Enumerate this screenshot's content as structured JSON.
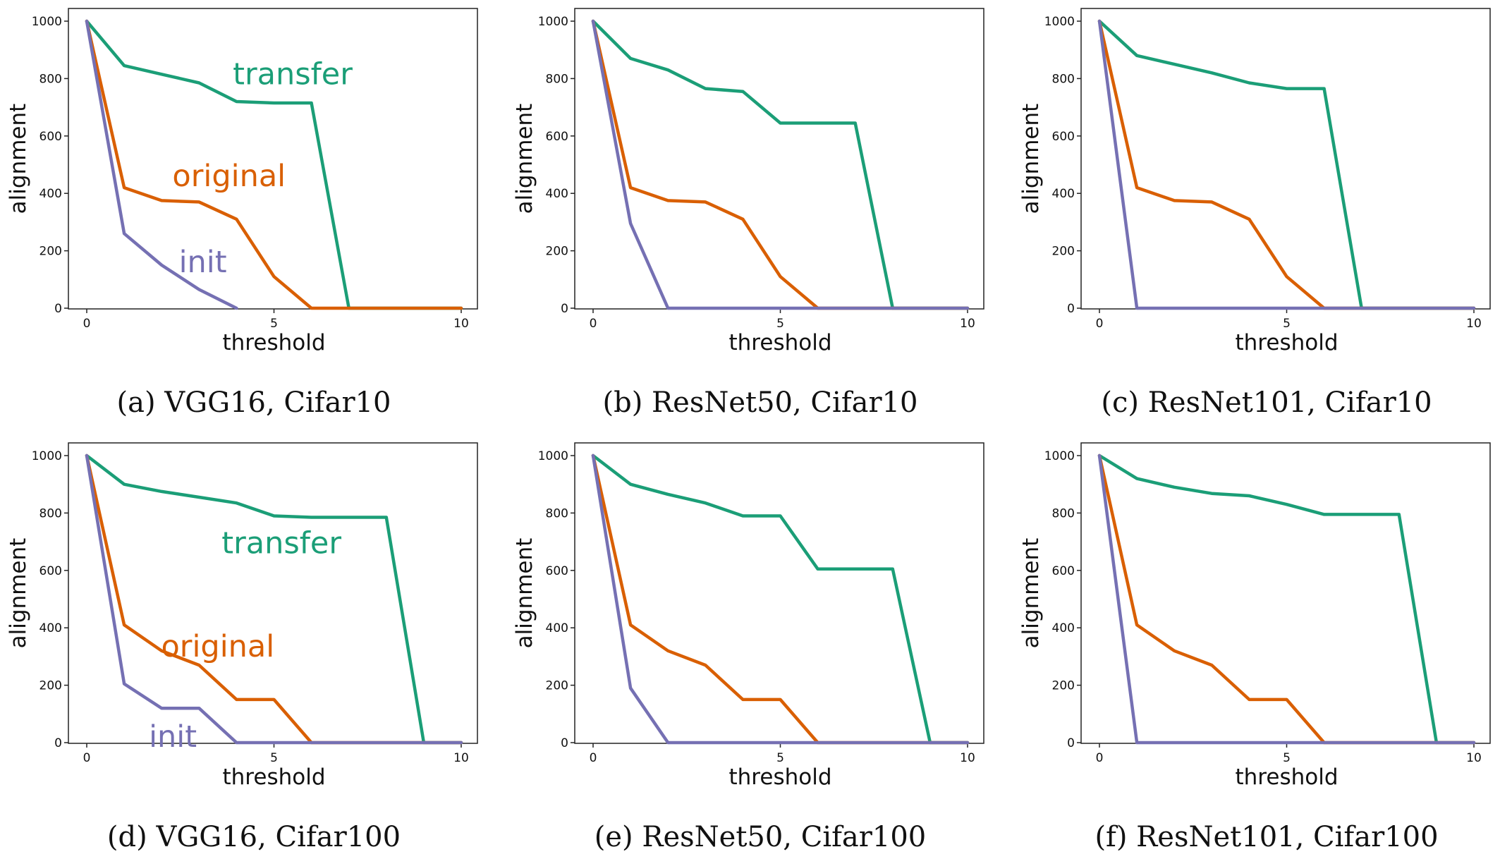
{
  "series_colors": {
    "transfer": "#1b9e77",
    "original": "#d95f02",
    "init": "#7570b3"
  },
  "chart_data": [
    {
      "type": "line",
      "caption": "(a) VGG16, Cifar10",
      "xlabel": "threshold",
      "ylabel": "alignment",
      "xlim": [
        0,
        10
      ],
      "ylim": [
        0,
        1000
      ],
      "xticks": [
        0,
        5,
        10
      ],
      "yticks": [
        0,
        200,
        400,
        600,
        800,
        1000
      ],
      "annotations": [
        {
          "text": "transfer",
          "series": "transfer",
          "at": [
            5.5,
            780
          ]
        },
        {
          "text": "original",
          "series": "original",
          "at": [
            3.8,
            425
          ]
        },
        {
          "text": "init",
          "series": "init",
          "at": [
            3.1,
            125
          ]
        }
      ],
      "series": [
        {
          "key": "transfer",
          "x": [
            0,
            1,
            2,
            3,
            4,
            5,
            6,
            7,
            8,
            9,
            10
          ],
          "y": [
            1000,
            845,
            815,
            785,
            720,
            715,
            715,
            0,
            0,
            0,
            0
          ]
        },
        {
          "key": "original",
          "x": [
            0,
            1,
            2,
            3,
            4,
            5,
            6,
            7,
            8,
            9,
            10
          ],
          "y": [
            1000,
            420,
            375,
            370,
            310,
            110,
            0,
            0,
            0,
            0,
            0
          ]
        },
        {
          "key": "init",
          "x": [
            0,
            1,
            2,
            3,
            4
          ],
          "y": [
            1000,
            260,
            150,
            65,
            0
          ]
        }
      ]
    },
    {
      "type": "line",
      "caption": "(b) ResNet50, Cifar10",
      "xlabel": "threshold",
      "ylabel": "alignment",
      "xlim": [
        0,
        10
      ],
      "ylim": [
        0,
        1000
      ],
      "xticks": [
        0,
        5,
        10
      ],
      "yticks": [
        0,
        200,
        400,
        600,
        800,
        1000
      ],
      "annotations": [],
      "series": [
        {
          "key": "transfer",
          "x": [
            0,
            1,
            2,
            3,
            4,
            5,
            6,
            7,
            8,
            9,
            10
          ],
          "y": [
            1000,
            870,
            830,
            765,
            755,
            645,
            645,
            645,
            0,
            0,
            0
          ]
        },
        {
          "key": "original",
          "x": [
            0,
            1,
            2,
            3,
            4,
            5,
            6,
            7,
            8,
            9,
            10
          ],
          "y": [
            1000,
            420,
            375,
            370,
            310,
            110,
            0,
            0,
            0,
            0,
            0
          ]
        },
        {
          "key": "init",
          "x": [
            0,
            1,
            2,
            3,
            4,
            5,
            6,
            7,
            8,
            9,
            10
          ],
          "y": [
            1000,
            295,
            0,
            0,
            0,
            0,
            0,
            0,
            0,
            0,
            0
          ]
        }
      ]
    },
    {
      "type": "line",
      "caption": "(c) ResNet101, Cifar10",
      "xlabel": "threshold",
      "ylabel": "alignment",
      "xlim": [
        0,
        10
      ],
      "ylim": [
        0,
        1000
      ],
      "xticks": [
        0,
        5,
        10
      ],
      "yticks": [
        0,
        200,
        400,
        600,
        800,
        1000
      ],
      "annotations": [],
      "series": [
        {
          "key": "transfer",
          "x": [
            0,
            1,
            2,
            3,
            4,
            5,
            6,
            7,
            8,
            9,
            10
          ],
          "y": [
            1000,
            880,
            850,
            820,
            785,
            765,
            765,
            0,
            0,
            0,
            0
          ]
        },
        {
          "key": "original",
          "x": [
            0,
            1,
            2,
            3,
            4,
            5,
            6,
            7,
            8,
            9,
            10
          ],
          "y": [
            1000,
            420,
            375,
            370,
            310,
            110,
            0,
            0,
            0,
            0,
            0
          ]
        },
        {
          "key": "init",
          "x": [
            0,
            1,
            2,
            3,
            4,
            5,
            6,
            7,
            8,
            9,
            10
          ],
          "y": [
            1000,
            0,
            0,
            0,
            0,
            0,
            0,
            0,
            0,
            0,
            0
          ]
        }
      ]
    },
    {
      "type": "line",
      "caption": "(d) VGG16, Cifar100",
      "xlabel": "threshold",
      "ylabel": "alignment",
      "xlim": [
        0,
        10
      ],
      "ylim": [
        0,
        1000
      ],
      "xticks": [
        0,
        5,
        10
      ],
      "yticks": [
        0,
        200,
        400,
        600,
        800,
        1000
      ],
      "annotations": [
        {
          "text": "transfer",
          "series": "transfer",
          "at": [
            5.2,
            660
          ]
        },
        {
          "text": "original",
          "series": "original",
          "at": [
            3.5,
            300
          ]
        },
        {
          "text": "init",
          "series": "init",
          "at": [
            2.3,
            -15
          ]
        }
      ],
      "series": [
        {
          "key": "transfer",
          "x": [
            0,
            1,
            2,
            3,
            4,
            5,
            6,
            7,
            8,
            9,
            10
          ],
          "y": [
            1000,
            900,
            875,
            855,
            835,
            790,
            785,
            785,
            785,
            0,
            0
          ]
        },
        {
          "key": "original",
          "x": [
            0,
            1,
            2,
            3,
            4,
            5,
            6,
            7,
            8,
            9,
            10
          ],
          "y": [
            1000,
            410,
            320,
            270,
            150,
            150,
            0,
            0,
            0,
            0,
            0
          ]
        },
        {
          "key": "init",
          "x": [
            0,
            1,
            2,
            3,
            4,
            5,
            6,
            7,
            8,
            9,
            10
          ],
          "y": [
            1000,
            205,
            120,
            120,
            0,
            0,
            0,
            0,
            0,
            0,
            0
          ]
        }
      ]
    },
    {
      "type": "line",
      "caption": "(e) ResNet50, Cifar100",
      "xlabel": "threshold",
      "ylabel": "alignment",
      "xlim": [
        0,
        10
      ],
      "ylim": [
        0,
        1000
      ],
      "xticks": [
        0,
        5,
        10
      ],
      "yticks": [
        0,
        200,
        400,
        600,
        800,
        1000
      ],
      "annotations": [],
      "series": [
        {
          "key": "transfer",
          "x": [
            0,
            1,
            2,
            3,
            4,
            5,
            6,
            7,
            8,
            9,
            10
          ],
          "y": [
            1000,
            900,
            865,
            835,
            790,
            790,
            605,
            605,
            605,
            0,
            0
          ]
        },
        {
          "key": "original",
          "x": [
            0,
            1,
            2,
            3,
            4,
            5,
            6,
            7,
            8,
            9,
            10
          ],
          "y": [
            1000,
            410,
            320,
            270,
            150,
            150,
            0,
            0,
            0,
            0,
            0
          ]
        },
        {
          "key": "init",
          "x": [
            0,
            1,
            2,
            3,
            4,
            5,
            6,
            7,
            8,
            9,
            10
          ],
          "y": [
            1000,
            190,
            0,
            0,
            0,
            0,
            0,
            0,
            0,
            0,
            0
          ]
        }
      ]
    },
    {
      "type": "line",
      "caption": "(f) ResNet101, Cifar100",
      "xlabel": "threshold",
      "ylabel": "alignment",
      "xlim": [
        0,
        10
      ],
      "ylim": [
        0,
        1000
      ],
      "xticks": [
        0,
        5,
        10
      ],
      "yticks": [
        0,
        200,
        400,
        600,
        800,
        1000
      ],
      "annotations": [],
      "series": [
        {
          "key": "transfer",
          "x": [
            0,
            1,
            2,
            3,
            4,
            5,
            6,
            7,
            8,
            9,
            10
          ],
          "y": [
            1000,
            920,
            890,
            868,
            860,
            830,
            795,
            795,
            795,
            0,
            0
          ]
        },
        {
          "key": "original",
          "x": [
            0,
            1,
            2,
            3,
            4,
            5,
            6,
            7,
            8,
            9,
            10
          ],
          "y": [
            1000,
            410,
            320,
            270,
            150,
            150,
            0,
            0,
            0,
            0,
            0
          ]
        },
        {
          "key": "init",
          "x": [
            0,
            1,
            2,
            3,
            4,
            5,
            6,
            7,
            8,
            9,
            10
          ],
          "y": [
            1000,
            0,
            0,
            0,
            0,
            0,
            0,
            0,
            0,
            0,
            0
          ]
        }
      ]
    }
  ]
}
